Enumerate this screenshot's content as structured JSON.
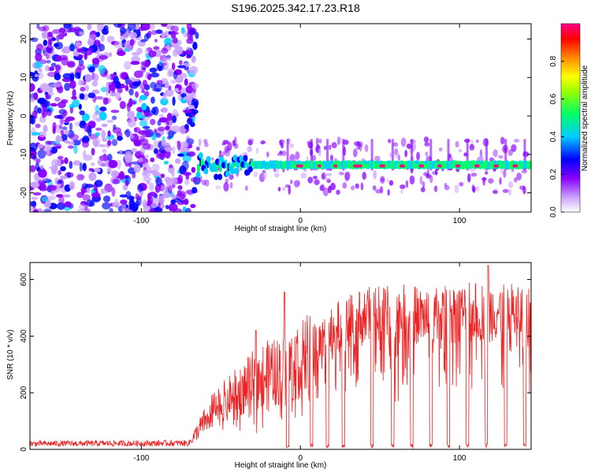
{
  "title": "S196.2025.342.17.23.R18",
  "chart_data": [
    {
      "type": "heatmap",
      "name": "spectrogram",
      "xlabel": "Height of straight line (km)",
      "ylabel": "Frequency (Hz)",
      "xlim": [
        -170,
        145
      ],
      "ylim": [
        -25,
        24
      ],
      "xticks": [
        -100,
        0,
        100
      ],
      "yticks": [
        20,
        10,
        0,
        -10,
        -20
      ],
      "noise_region_x": [
        -170,
        -65
      ],
      "signal_region_x": [
        -65,
        145
      ],
      "signal_line_freq_hz": -13,
      "colorbar": {
        "label": "Normalized spectral amplitude",
        "range": [
          0.0,
          1.0
        ],
        "ticks": [
          "0.0",
          "0.2",
          "0.4",
          "0.6",
          "0.8"
        ],
        "colors": [
          "#ffffff",
          "#9900ff",
          "#0000ff",
          "#00ffff",
          "#00ff00",
          "#ffff00",
          "#ff8800",
          "#ff0000",
          "#ff0088"
        ]
      }
    },
    {
      "type": "line",
      "name": "snr",
      "xlabel": "Height of straight line (km)",
      "ylabel": "SNR (10 * v/v)",
      "xlim": [
        -170,
        145
      ],
      "ylim": [
        0,
        660
      ],
      "xticks": [
        -100,
        0,
        100
      ],
      "yticks": [
        0,
        200,
        400,
        600
      ],
      "color": "#ee2222",
      "envelope": [
        {
          "x": -170,
          "snr": 20
        },
        {
          "x": -70,
          "snr": 22
        },
        {
          "x": -55,
          "snr": 140
        },
        {
          "x": -40,
          "snr": 200
        },
        {
          "x": -25,
          "snr": 260
        },
        {
          "x": -10,
          "snr": 280
        },
        {
          "x": 0,
          "snr": 320
        },
        {
          "x": 10,
          "snr": 360
        },
        {
          "x": 20,
          "snr": 420
        },
        {
          "x": 40,
          "snr": 470
        },
        {
          "x": 60,
          "snr": 480
        },
        {
          "x": 80,
          "snr": 470
        },
        {
          "x": 100,
          "snr": 480
        },
        {
          "x": 120,
          "snr": 490
        },
        {
          "x": 145,
          "snr": 480
        }
      ],
      "dropouts_x": [
        -8,
        7,
        17,
        27,
        45,
        58,
        70,
        82,
        93,
        105,
        117,
        129,
        141
      ],
      "spikes": [
        {
          "x": -10,
          "snr": 555
        },
        {
          "x": -28,
          "snr": 420
        },
        {
          "x": 118,
          "snr": 650
        }
      ]
    }
  ]
}
